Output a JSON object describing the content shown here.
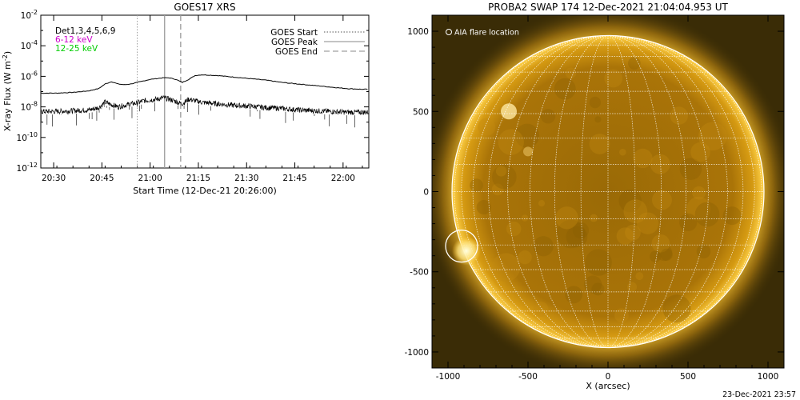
{
  "chart_data": [
    {
      "type": "line",
      "title": "GOES17 XRS",
      "xlabel": "Start Time (12-Dec-21 20:26:00)",
      "ylabel": "X-ray Flux (W m",
      "ylabel_sup": "-2",
      "ylabel_close": ")",
      "y_scale": "log",
      "y_exponent_range": [
        -12,
        -2
      ],
      "y_ticks": [
        {
          "base": "10",
          "exp": "-2",
          "value": -2
        },
        {
          "base": "10",
          "exp": "-4",
          "value": -4
        },
        {
          "base": "10",
          "exp": "-6",
          "value": -6
        },
        {
          "base": "10",
          "exp": "-8",
          "value": -8
        },
        {
          "base": "10",
          "exp": "-10",
          "value": -10
        },
        {
          "base": "10",
          "exp": "-12",
          "value": -12
        }
      ],
      "x_range_minutes": [
        0,
        102
      ],
      "x_ticks": [
        {
          "label": "20:30",
          "minutes": 4
        },
        {
          "label": "20:45",
          "minutes": 19
        },
        {
          "label": "21:00",
          "minutes": 34
        },
        {
          "label": "21:15",
          "minutes": 49
        },
        {
          "label": "21:30",
          "minutes": 64
        },
        {
          "label": "21:45",
          "minutes": 79
        },
        {
          "label": "22:00",
          "minutes": 94
        }
      ],
      "channel_labels": [
        {
          "text": "Det1,3,4,5,6,9",
          "color": "#000000"
        },
        {
          "text": "6-12 keV",
          "color": "#cc00cc"
        },
        {
          "text": "12-25 keV",
          "color": "#00cc00"
        }
      ],
      "legend": {
        "placement": "top-right",
        "entries": [
          {
            "label": "GOES Start",
            "style": "dotted"
          },
          {
            "label": "GOES Peak",
            "style": "solid"
          },
          {
            "label": "GOES End",
            "style": "dashed"
          }
        ]
      },
      "event_lines": [
        {
          "label": "GOES Start",
          "minutes": 30,
          "style": "dotted"
        },
        {
          "label": "GOES Peak",
          "minutes": 38.5,
          "style": "solid"
        },
        {
          "label": "GOES End",
          "minutes": 43.5,
          "style": "dashed"
        }
      ],
      "series": [
        {
          "channel": "long",
          "color": "#000000",
          "x_minutes": [
            0,
            5,
            10,
            15,
            18,
            20,
            22,
            24,
            26,
            28,
            30,
            32,
            34,
            36,
            38,
            40,
            42,
            44,
            46,
            48,
            50,
            55,
            60,
            65,
            70,
            75,
            80,
            85,
            90,
            95,
            100,
            102
          ],
          "log_flux": [
            -7.1,
            -7.1,
            -7.05,
            -6.95,
            -6.8,
            -6.5,
            -6.35,
            -6.5,
            -6.55,
            -6.5,
            -6.4,
            -6.3,
            -6.2,
            -6.15,
            -6.1,
            -6.1,
            -6.2,
            -6.4,
            -6.2,
            -5.95,
            -5.9,
            -5.95,
            -6.05,
            -6.15,
            -6.25,
            -6.4,
            -6.5,
            -6.6,
            -6.7,
            -6.8,
            -6.85,
            -6.85
          ]
        },
        {
          "channel": "short",
          "color": "#000000",
          "x_minutes": [
            0,
            5,
            10,
            15,
            18,
            20,
            22,
            24,
            26,
            28,
            30,
            32,
            34,
            36,
            38,
            40,
            42,
            44,
            46,
            48,
            50,
            55,
            60,
            65,
            70,
            75,
            80,
            85,
            90,
            95,
            100,
            102
          ],
          "log_flux": [
            -8.3,
            -8.3,
            -8.25,
            -8.2,
            -8.05,
            -7.7,
            -7.85,
            -8.0,
            -7.9,
            -7.8,
            -7.75,
            -7.6,
            -7.55,
            -7.5,
            -7.4,
            -7.5,
            -7.65,
            -7.8,
            -7.5,
            -7.6,
            -7.7,
            -7.8,
            -7.9,
            -7.95,
            -8.05,
            -8.1,
            -8.2,
            -8.25,
            -8.3,
            -8.35,
            -8.35,
            -8.35
          ]
        }
      ]
    },
    {
      "type": "image",
      "title": "PROBA2 SWAP 174 12-Dec-2021 21:04:04.953 UT",
      "xlabel": "X (arcsec)",
      "x_range": [
        -1100,
        1100
      ],
      "y_range": [
        -1100,
        1100
      ],
      "ticks": [
        -1000,
        -500,
        0,
        500,
        1000
      ],
      "solar_radius_arcsec": 975,
      "grid_spacing_deg": 10,
      "annotation": "AIA flare location",
      "flare_location_arcsec": [
        -915,
        -340
      ],
      "flare_circle_radius_arcsec": 100,
      "colors": {
        "background": "#3a2c06",
        "disk": "#b07a08",
        "limb": "#ffd24a",
        "grid": "#ffffff"
      }
    }
  ],
  "footer_timestamp": "23-Dec-2021 23:57"
}
